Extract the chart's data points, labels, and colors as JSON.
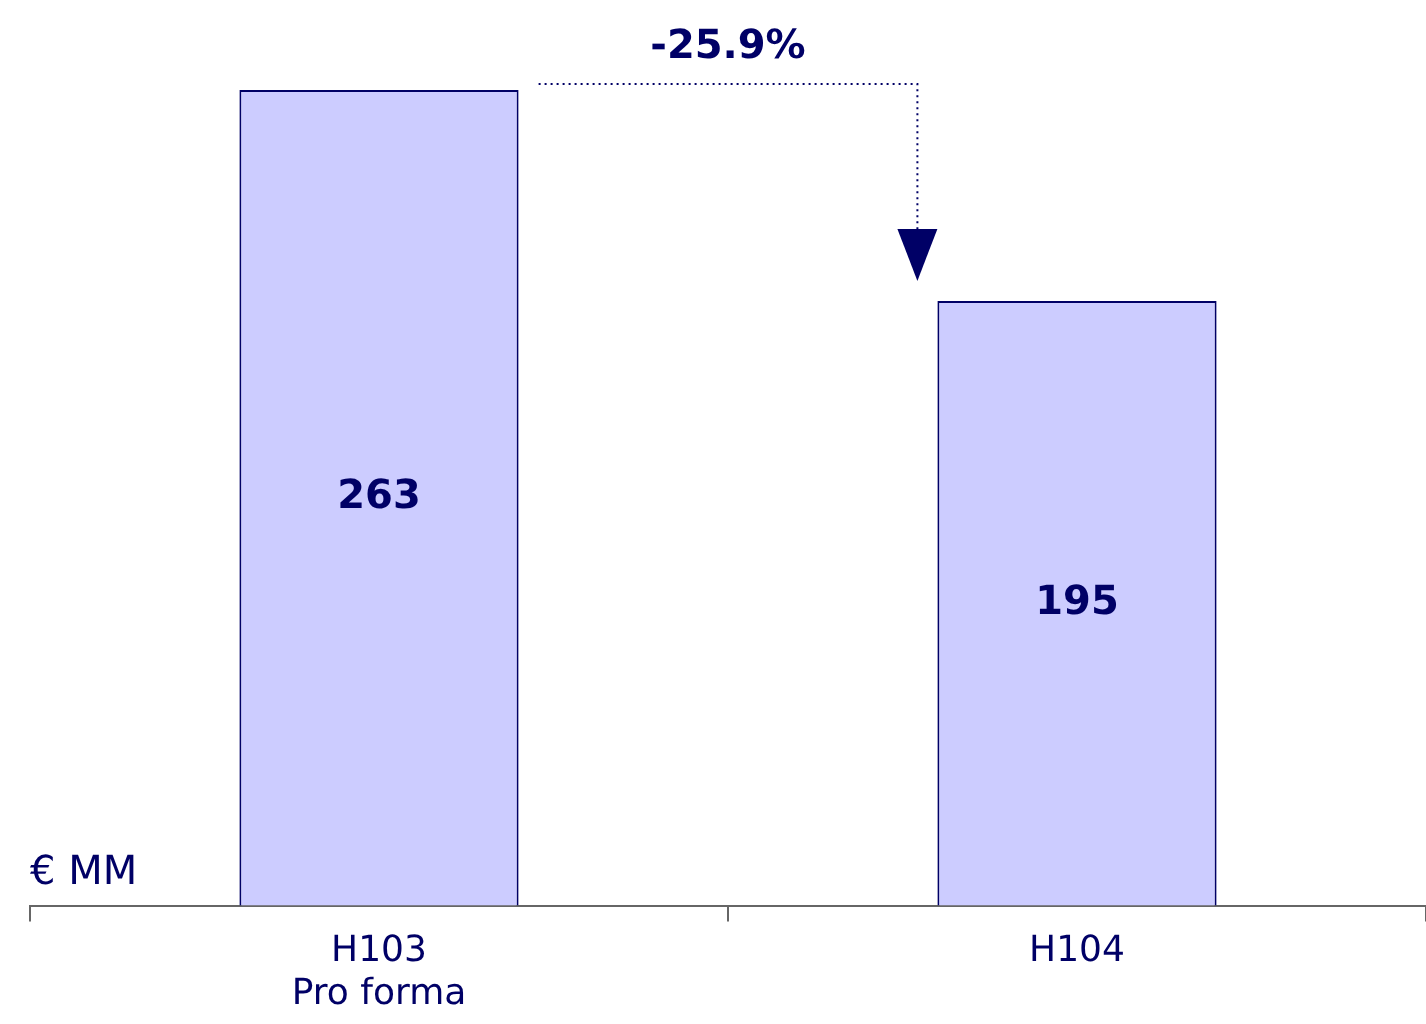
{
  "chart_data": {
    "type": "bar",
    "categories": [
      "H103\nPro forma",
      "H104"
    ],
    "values": [
      263,
      195
    ],
    "color": "#ccccff",
    "ylabel": "€ MM",
    "data_labels": true,
    "annotations": [
      "-25.9%"
    ]
  }
}
